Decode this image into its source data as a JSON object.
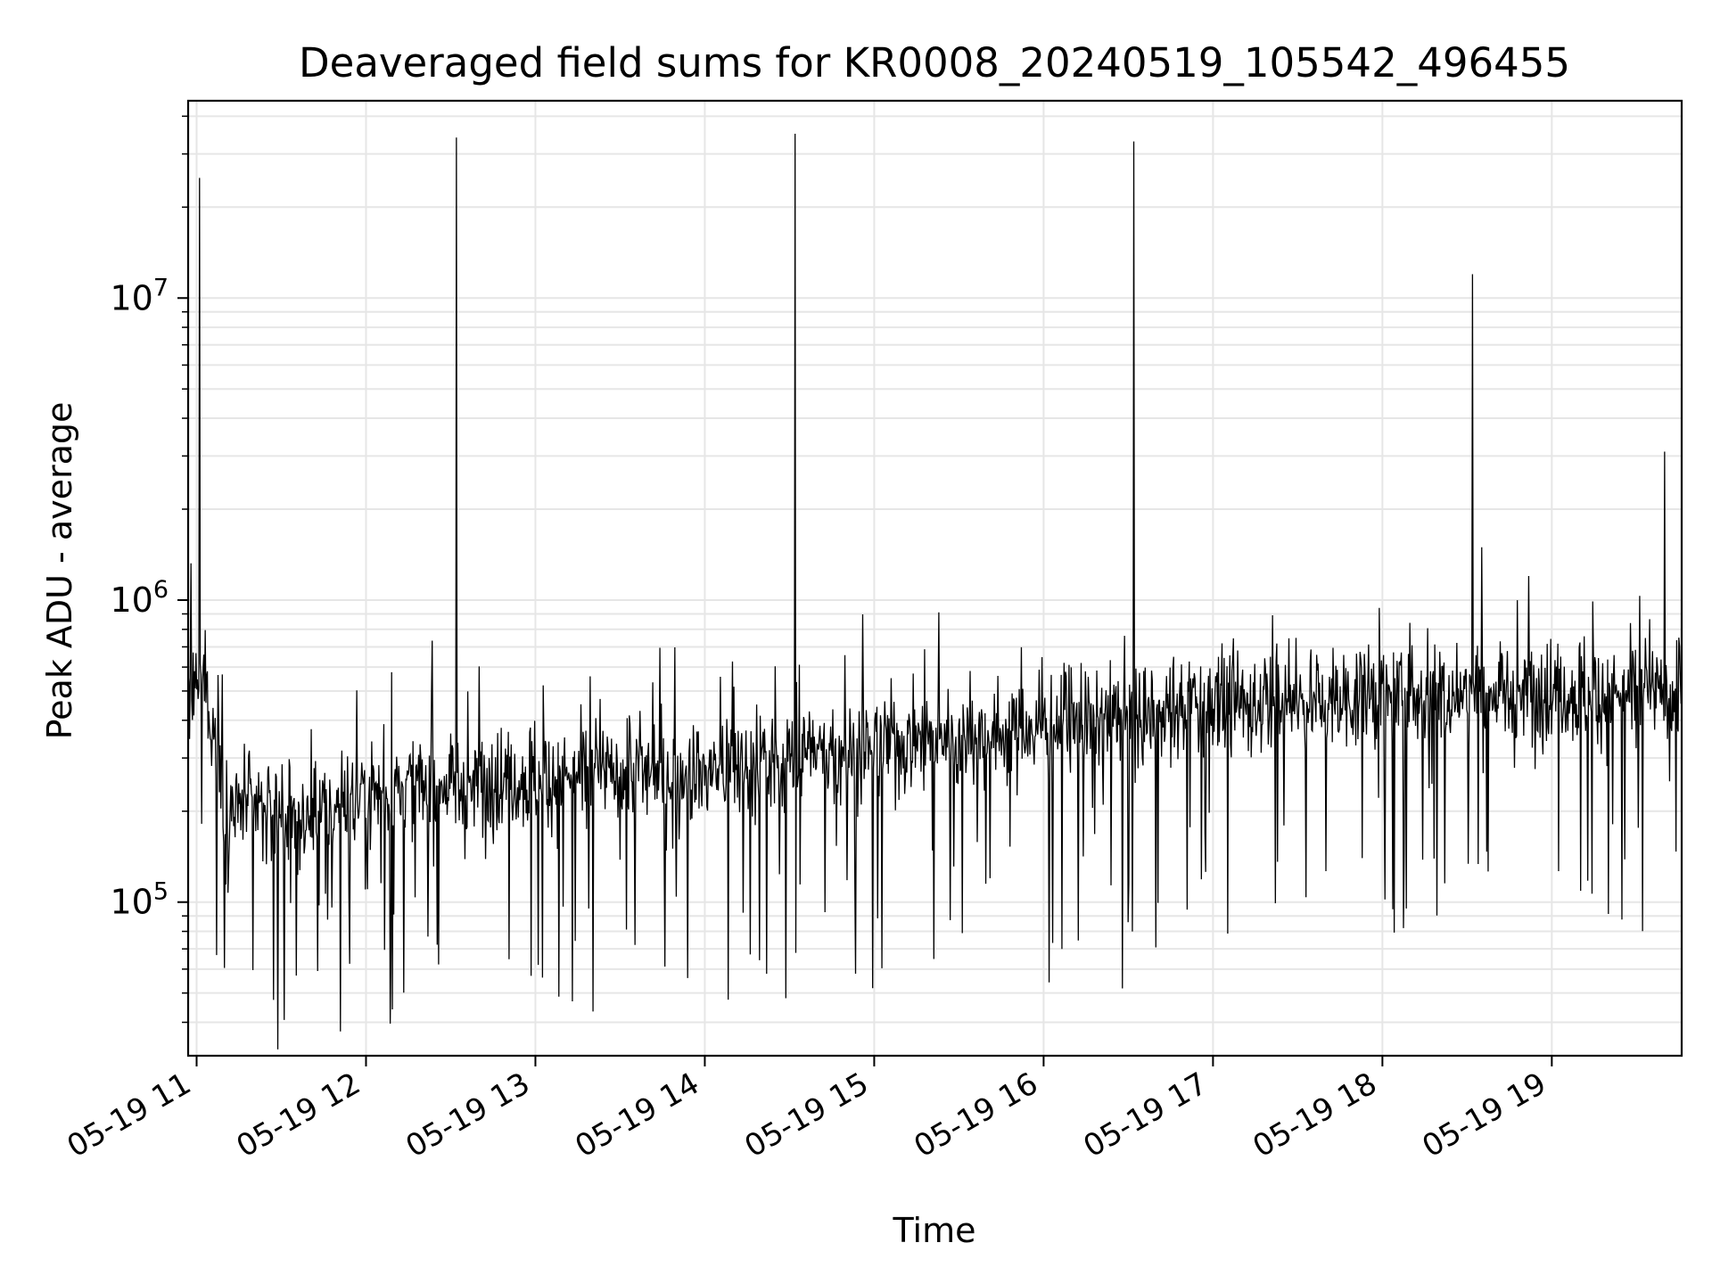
{
  "chart_data": {
    "type": "line",
    "title": "Deaveraged field sums for KR0008_20240519_105542_496455",
    "xlabel": "Time",
    "ylabel": "Peak ADU - average",
    "yscale": "log",
    "ylim": [
      31000,
      45000000
    ],
    "xlim": [
      "2024-05-19 10:57",
      "2024-05-19 19:46"
    ],
    "grid": true,
    "line_color": "#000000",
    "x_ticks": [
      "05-19 11",
      "05-19 12",
      "05-19 13",
      "05-19 14",
      "05-19 15",
      "05-19 16",
      "05-19 17",
      "05-19 18",
      "05-19 19"
    ],
    "y_ticks": [
      {
        "value": 100000,
        "base": "10",
        "exp": "5"
      },
      {
        "value": 1000000,
        "base": "10",
        "exp": "6"
      },
      {
        "value": 10000000,
        "base": "10",
        "exp": "7"
      }
    ],
    "spikes": [
      {
        "time": "2024-05-19 11:01",
        "value": 25000000
      },
      {
        "time": "2024-05-19 12:32",
        "value": 34000000
      },
      {
        "time": "2024-05-19 14:32",
        "value": 35000000
      },
      {
        "time": "2024-05-19 16:32",
        "value": 33000000
      },
      {
        "time": "2024-05-19 18:32",
        "value": 12000000
      },
      {
        "time": "2024-05-19 19:40",
        "value": 3100000
      }
    ],
    "baseline_trend": [
      {
        "time": "2024-05-19 10:57",
        "value": 480000
      },
      {
        "time": "2024-05-19 11:03",
        "value": 550000
      },
      {
        "time": "2024-05-19 11:10",
        "value": 210000
      },
      {
        "time": "2024-05-19 11:30",
        "value": 200000
      },
      {
        "time": "2024-05-19 11:40",
        "value": 180000
      },
      {
        "time": "2024-05-19 12:00",
        "value": 230000
      },
      {
        "time": "2024-05-19 13:00",
        "value": 260000
      },
      {
        "time": "2024-05-19 14:00",
        "value": 270000
      },
      {
        "time": "2024-05-19 15:00",
        "value": 330000
      },
      {
        "time": "2024-05-19 16:00",
        "value": 380000
      },
      {
        "time": "2024-05-19 17:00",
        "value": 450000
      },
      {
        "time": "2024-05-19 18:00",
        "value": 480000
      },
      {
        "time": "2024-05-19 19:00",
        "value": 500000
      },
      {
        "time": "2024-05-19 19:46",
        "value": 480000
      }
    ]
  }
}
